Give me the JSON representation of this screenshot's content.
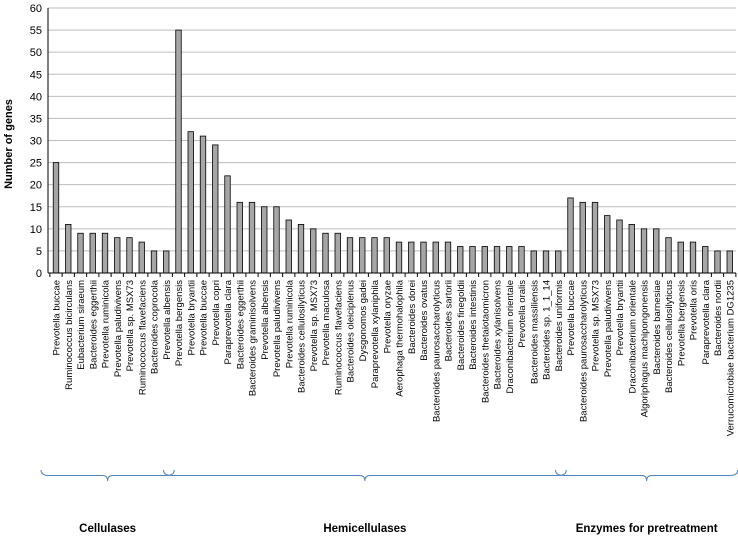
{
  "chart_data": {
    "type": "bar",
    "ylabel": "Number of genes",
    "ylim": [
      0,
      60
    ],
    "yticks": [
      0,
      5,
      10,
      15,
      20,
      25,
      30,
      35,
      40,
      45,
      50,
      55,
      60
    ],
    "grid": true,
    "legend": "none",
    "bar_color": "#a6a6a6",
    "categories": [
      "Prevotella buccae",
      "Ruminococcus bicirculans",
      "Eubacterium siraeum",
      "Bacteroides eggerthii",
      "Prevotella ruminicola",
      "Prevotella paludivivens",
      "Prevotella sp. MSX73",
      "Ruminococcus flavefaciens",
      "Bacteroides coprocola",
      "Prevotella albensis",
      "Prevotella bergensis",
      "Prevotella bryantii",
      "Prevotella buccae",
      "Prevotella copri",
      "Paraprevotella clara",
      "Bacteroides eggerthii",
      "Bacteroides graminisolvens",
      "Prevotella albensis",
      "Prevotella paludivivens",
      "Prevotella ruminicola",
      "Bacteroides cellulosilyticus",
      "Prevotella sp. MSX73",
      "Prevotella maculosa",
      "Ruminococcus flavefaciens",
      "Bacteroides oleiciplenus",
      "Dysgonomos gadei",
      "Paraprevotella xylaniphila",
      "Prevotella oryzae",
      "Aerophaga thermohalophila",
      "Bacteroides dorei",
      "Bacteroides ovatus",
      "Bacteroides paurosaccharolyticus",
      "Bacteroides sartorii",
      "Bacteroides finegoldii",
      "Bacteroides intestinis",
      "Bacteroides thetaiotaomicron",
      "Bacteroides xylanisolvens",
      "Draconibacterium orientale",
      "Prevotella oralis",
      "Bacteroides massiliensis",
      "Bacteroides sp. 1_1_14",
      "Bacteroides uniformis",
      "Prevotella buccae",
      "Bacteroides paurosaccharolyticus",
      "Prevotella sp. MSX73",
      "Prevotella paludivivens",
      "Prevotella bryantii",
      "Draconibacterium orientale",
      "Algoriphagus machipongonensis",
      "Bacteroides barnesiae",
      "Bacteroides cellulosilyticus",
      "Prevotella bergensis",
      "Prevotella oris",
      "Paraprevotella clara",
      "Bacteroides nordii",
      "Verrucomicrobiae bacterium DG1235"
    ],
    "values": [
      25,
      11,
      9,
      9,
      9,
      8,
      8,
      7,
      5,
      5,
      55,
      32,
      31,
      29,
      22,
      16,
      16,
      15,
      15,
      12,
      11,
      10,
      9,
      9,
      8,
      8,
      8,
      8,
      7,
      7,
      7,
      7,
      7,
      6,
      6,
      6,
      6,
      6,
      6,
      5,
      5,
      5,
      17,
      16,
      16,
      13,
      12,
      11,
      10,
      10,
      8,
      7,
      7,
      6,
      5,
      5
    ],
    "groups": [
      {
        "label": "Cellulases",
        "start": 0,
        "end": 9
      },
      {
        "label": "Hemicellulases",
        "start": 10,
        "end": 41
      },
      {
        "label": "Enzymes for pretreatment",
        "start": 42,
        "end": 55
      }
    ]
  }
}
